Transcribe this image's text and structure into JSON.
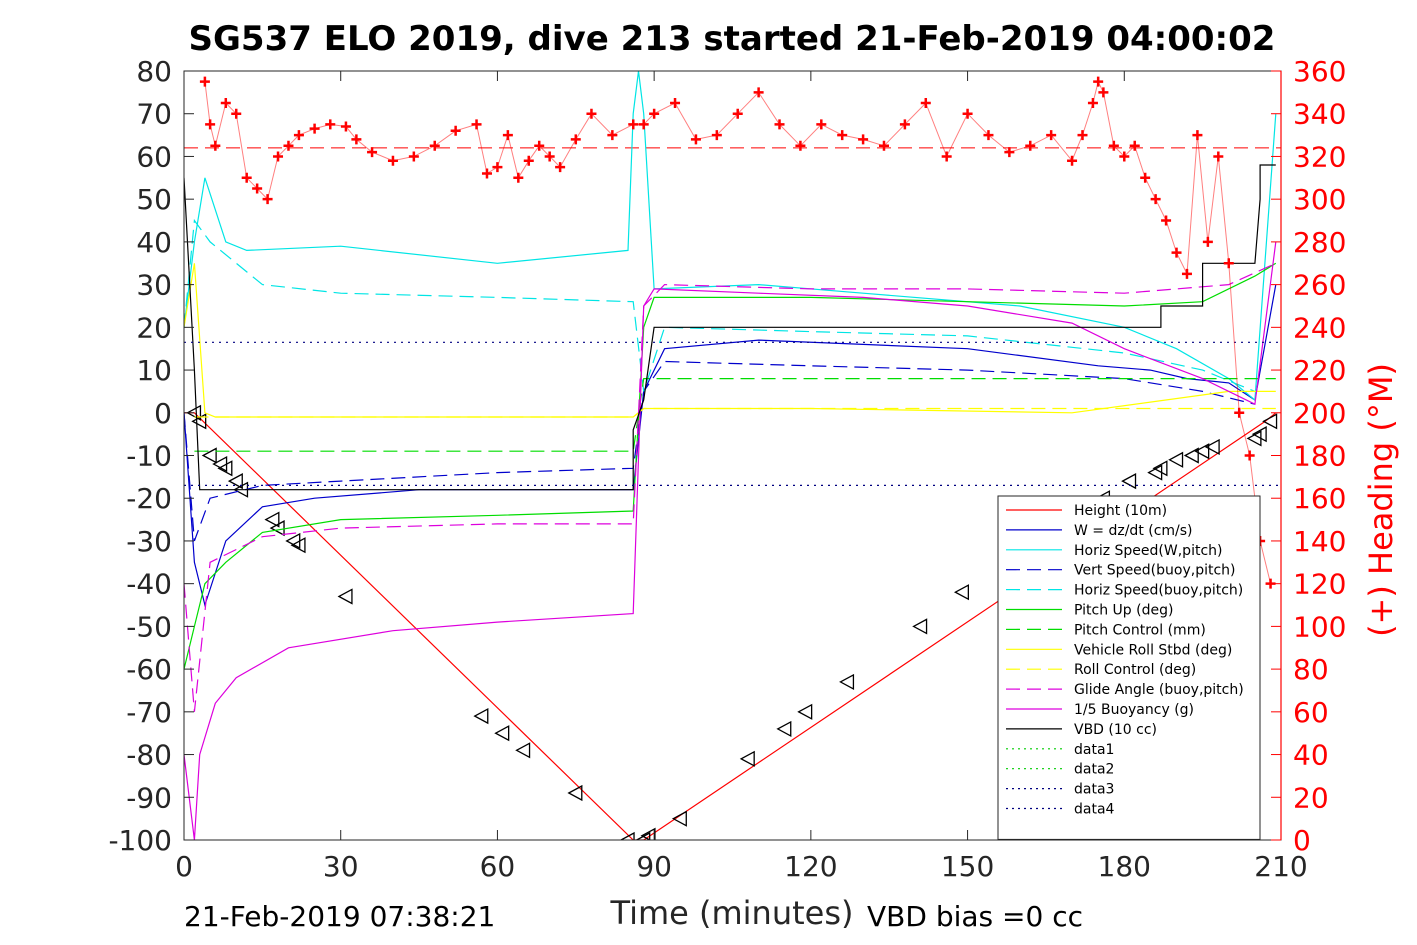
{
  "chart_data": {
    "type": "line",
    "title": "SG537 ELO 2019, dive 213 started 21-Feb-2019 04:00:02",
    "xlabel": "Time (minutes)",
    "ylabel": "",
    "ylabel_right": "(+) Heading (°M)",
    "xlim": [
      0,
      210
    ],
    "ylim": [
      -100,
      80
    ],
    "ylim_right": [
      0,
      360
    ],
    "x_ticks": [
      "0",
      "30",
      "60",
      "90",
      "120",
      "150",
      "180",
      "210"
    ],
    "y_ticks": [
      "80",
      "70",
      "60",
      "50",
      "40",
      "30",
      "20",
      "10",
      "0",
      "-10",
      "-20",
      "-30",
      "-40",
      "-50",
      "-60",
      "-70",
      "-80",
      "-90",
      "-100"
    ],
    "y_ticks_right": [
      "360",
      "340",
      "320",
      "300",
      "280",
      "260",
      "240",
      "220",
      "200",
      "180",
      "160",
      "140",
      "120",
      "100",
      "80",
      "60",
      "40",
      "20",
      "0"
    ],
    "footer_left": "21-Feb-2019 07:38:21",
    "footer_right": "VBD bias =0 cc",
    "legend_position": "lower-right",
    "colors": {
      "red": "#ff0000",
      "blue": "#0000cc",
      "cyan": "#00e5e5",
      "green": "#00dd00",
      "yellow": "#ffff00",
      "magenta": "#dd00dd",
      "black": "#000000",
      "data_green": "#00cc00",
      "data_navy": "#000080"
    },
    "series": [
      {
        "name": "Height (10m)",
        "color": "red",
        "dash": "solid",
        "x": [
          0,
          2,
          86,
          88,
          207,
          209
        ],
        "y": [
          0,
          0,
          -100,
          -100,
          -2,
          0
        ],
        "markers_x": [
          2,
          3,
          5,
          7,
          8,
          10,
          11,
          17,
          18,
          21,
          22,
          31,
          57,
          61,
          65,
          75,
          85,
          88,
          89,
          95,
          108,
          115,
          119,
          127,
          141,
          149,
          176,
          181,
          186,
          187,
          190,
          193,
          195,
          197,
          205,
          206,
          208
        ],
        "markers_y": [
          0,
          -2,
          -10,
          -12,
          -13,
          -16,
          -18,
          -25,
          -27,
          -30,
          -31,
          -43,
          -71,
          -75,
          -79,
          -89,
          -100,
          -100,
          -99,
          -95,
          -81,
          -74,
          -70,
          -63,
          -50,
          -42,
          -20,
          -16,
          -14,
          -13,
          -11,
          -10,
          -9,
          -8,
          -6,
          -5,
          -2
        ]
      },
      {
        "name": "W = dz/dt (cm/s)",
        "color": "blue",
        "dash": "solid",
        "x": [
          0,
          2,
          4,
          8,
          15,
          25,
          45,
          65,
          86,
          88,
          92,
          110,
          130,
          150,
          175,
          185,
          192,
          200,
          205,
          209
        ],
        "y": [
          0,
          -35,
          -45,
          -30,
          -22,
          -20,
          -18,
          -18,
          -18,
          5,
          15,
          17,
          16,
          15,
          11,
          10,
          8,
          7,
          3,
          30
        ]
      },
      {
        "name": "Horiz Speed(W,pitch)",
        "color": "cyan",
        "dash": "solid",
        "x": [
          0,
          2,
          4,
          8,
          12,
          30,
          60,
          85,
          86,
          87,
          88,
          90,
          110,
          130,
          160,
          180,
          190,
          200,
          205,
          209
        ],
        "y": [
          20,
          40,
          55,
          40,
          38,
          39,
          35,
          38,
          70,
          80,
          70,
          29,
          30,
          28,
          25,
          20,
          15,
          8,
          3,
          70
        ]
      },
      {
        "name": "Vert Speed(buoy,pitch)",
        "color": "blue",
        "dash": "dashed",
        "x": [
          0,
          2,
          5,
          15,
          30,
          60,
          86,
          88,
          92,
          120,
          150,
          180,
          195,
          205
        ],
        "y": [
          0,
          -30,
          -20,
          -17,
          -16,
          -14,
          -13,
          5,
          12,
          11,
          10,
          8,
          5,
          2
        ]
      },
      {
        "name": "Horiz Speed(buoy,pitch)",
        "color": "cyan",
        "dash": "dashed",
        "x": [
          0,
          2,
          5,
          15,
          30,
          60,
          86,
          88,
          92,
          120,
          150,
          180,
          195,
          205
        ],
        "y": [
          20,
          45,
          40,
          30,
          28,
          27,
          26,
          5,
          20,
          19,
          18,
          14,
          10,
          5
        ]
      },
      {
        "name": "Pitch Up (deg)",
        "color": "green",
        "dash": "solid",
        "x": [
          0,
          2,
          4,
          8,
          15,
          30,
          60,
          86,
          88,
          90,
          120,
          150,
          180,
          195,
          205,
          209
        ],
        "y": [
          -60,
          -50,
          -40,
          -35,
          -28,
          -25,
          -24,
          -23,
          20,
          27,
          27,
          26,
          25,
          26,
          32,
          35
        ]
      },
      {
        "name": "Pitch Control (mm)",
        "color": "green",
        "dash": "dashed",
        "x": [
          2,
          86,
          88,
          180,
          209
        ],
        "y": [
          -9,
          -9,
          8,
          8,
          8
        ]
      },
      {
        "name": "Vehicle Roll Stbd (deg)",
        "color": "yellow",
        "dash": "solid",
        "x": [
          0,
          2,
          4,
          6,
          10,
          30,
          60,
          86,
          88,
          120,
          170,
          200,
          209
        ],
        "y": [
          20,
          35,
          0,
          -1,
          -1,
          -1,
          -1,
          -1,
          1,
          1,
          0,
          5,
          5
        ]
      },
      {
        "name": "Roll Control (deg)",
        "color": "yellow",
        "dash": "dashed",
        "x": [
          2,
          86,
          88,
          209
        ],
        "y": [
          -1,
          -1,
          1,
          1
        ]
      },
      {
        "name": "Glide Angle (buoy,pitch)",
        "color": "magenta",
        "dash": "dashed",
        "x": [
          0,
          2,
          5,
          15,
          30,
          60,
          86,
          88,
          92,
          120,
          150,
          180,
          200,
          209
        ],
        "y": [
          -40,
          -70,
          -35,
          -29,
          -27,
          -26,
          -26,
          25,
          30,
          29,
          29,
          28,
          30,
          35
        ]
      },
      {
        "name": "1/5 Buoyancy (g)",
        "color": "magenta",
        "dash": "solid",
        "x": [
          0,
          2,
          3,
          6,
          10,
          20,
          40,
          60,
          86,
          88,
          90,
          110,
          130,
          150,
          170,
          180,
          195,
          205,
          209
        ],
        "y": [
          -80,
          -100,
          -80,
          -68,
          -62,
          -55,
          -51,
          -49,
          -47,
          25,
          29,
          28,
          27,
          25,
          21,
          15,
          8,
          2,
          40
        ]
      },
      {
        "name": "VBD (10 cc)",
        "color": "black",
        "dash": "solid",
        "x": [
          0,
          2,
          3,
          86,
          86,
          88,
          90,
          180,
          187,
          187,
          195,
          195,
          205,
          206,
          206,
          209
        ],
        "y": [
          55,
          10,
          -18,
          -18,
          -4,
          3,
          20,
          20,
          20,
          25,
          25,
          35,
          35,
          50,
          58,
          58
        ]
      },
      {
        "name": "data1",
        "color": "data_green",
        "dash": "dotted",
        "x": [],
        "y": []
      },
      {
        "name": "data2",
        "color": "data_green",
        "dash": "dotted",
        "x": [],
        "y": []
      },
      {
        "name": "data3",
        "color": "data_navy",
        "dash": "dotted",
        "x": [
          0,
          210
        ],
        "y": [
          16.5,
          16.5
        ]
      },
      {
        "name": "data4",
        "color": "data_navy",
        "dash": "dotted",
        "x": [
          0,
          210
        ],
        "y": [
          -17,
          -17
        ]
      }
    ],
    "heading": {
      "axis": "right",
      "color": "red",
      "marker": "+",
      "target": 324,
      "x": [
        4,
        5,
        6,
        8,
        10,
        12,
        14,
        16,
        18,
        20,
        22,
        25,
        28,
        31,
        33,
        36,
        40,
        44,
        48,
        52,
        56,
        58,
        60,
        62,
        64,
        66,
        68,
        70,
        72,
        75,
        78,
        82,
        86,
        88,
        90,
        94,
        98,
        102,
        106,
        110,
        114,
        118,
        122,
        126,
        130,
        134,
        138,
        142,
        146,
        150,
        154,
        158,
        162,
        166,
        170,
        172,
        174,
        175,
        176,
        178,
        180,
        182,
        184,
        186,
        188,
        190,
        192,
        194,
        196,
        198,
        200,
        202,
        204,
        206,
        208
      ],
      "y": [
        355,
        335,
        325,
        345,
        340,
        310,
        305,
        300,
        320,
        325,
        330,
        333,
        335,
        334,
        328,
        322,
        318,
        320,
        325,
        332,
        335,
        312,
        315,
        330,
        310,
        318,
        325,
        320,
        315,
        328,
        340,
        330,
        335,
        335,
        340,
        345,
        328,
        330,
        340,
        350,
        335,
        325,
        335,
        330,
        328,
        325,
        335,
        345,
        320,
        340,
        330,
        322,
        325,
        330,
        318,
        330,
        345,
        355,
        350,
        325,
        320,
        325,
        310,
        300,
        290,
        275,
        265,
        330,
        280,
        320,
        270,
        200,
        180,
        140,
        120
      ]
    }
  }
}
